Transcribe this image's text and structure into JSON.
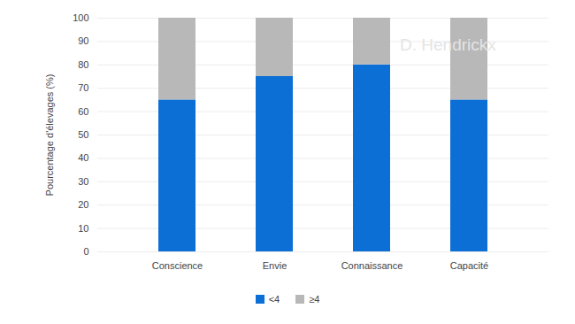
{
  "chart_data": {
    "type": "bar",
    "stacked": true,
    "categories": [
      "Conscience",
      "Envie",
      "Connaissance",
      "Capacité"
    ],
    "series": [
      {
        "name": "<4",
        "color": "#0b6fd6",
        "values": [
          65,
          75,
          80,
          65
        ]
      },
      {
        "name": "≥4",
        "color": "#b8b8b8",
        "values": [
          35,
          25,
          20,
          35
        ]
      }
    ],
    "ylabel": "Pourcentage d'élevages (%)",
    "ylim": [
      0,
      100
    ],
    "yticks": [
      0,
      10,
      20,
      30,
      40,
      50,
      60,
      70,
      80,
      90,
      100
    ],
    "grid": true,
    "legend": "bottom",
    "annotations": [
      "D. Hendrickx"
    ]
  }
}
